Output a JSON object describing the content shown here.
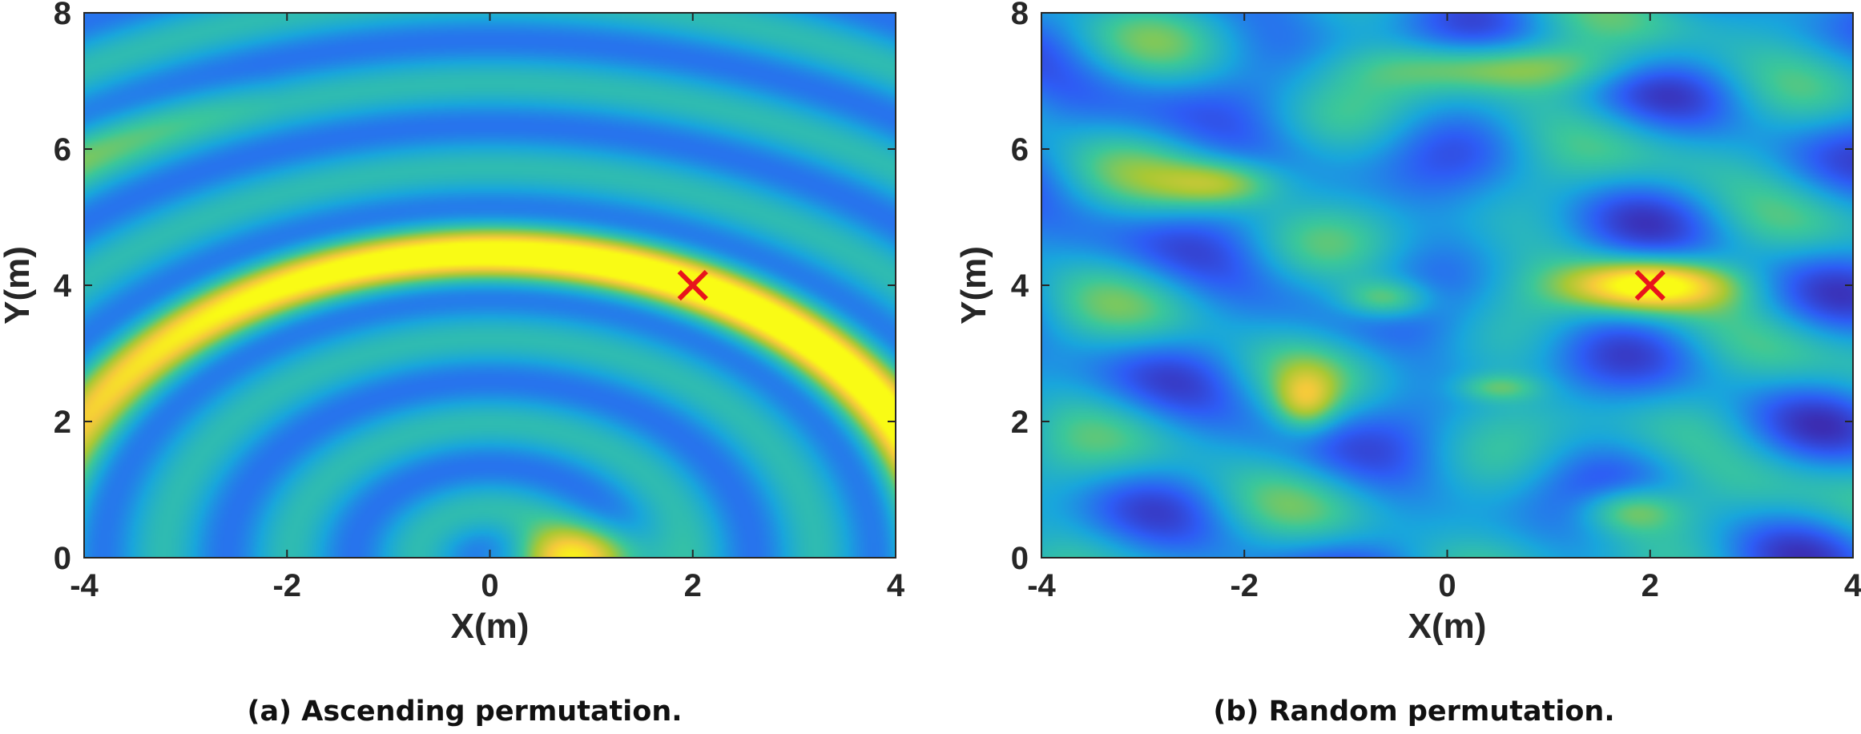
{
  "chart_data": [
    {
      "type": "heatmap",
      "title": "",
      "caption": "(a) Ascending permutation.",
      "xlabel": "X(m)",
      "ylabel": "Y(m)",
      "xlim": [
        -4,
        4
      ],
      "ylim": [
        0,
        8
      ],
      "xticks": [
        "-4",
        "-2",
        "0",
        "2",
        "4"
      ],
      "yticks": [
        "0",
        "2",
        "4",
        "6",
        "8"
      ],
      "colormap": "parula",
      "colors": [
        "#3d26a8",
        "#2e5cf5",
        "#19a6dc",
        "#3bc79a",
        "#a9c834",
        "#f5c93b",
        "#f9fb15"
      ],
      "pattern": "concentric arc rings around the origin; bright yellow ring through the target and upper-left",
      "target": {
        "x": 2,
        "y": 4,
        "marker": "x",
        "color": "#e8141c"
      }
    },
    {
      "type": "heatmap",
      "title": "",
      "caption": "(b) Random permutation.",
      "xlabel": "X(m)",
      "ylabel": "Y(m)",
      "xlim": [
        -4,
        4
      ],
      "ylim": [
        0,
        8
      ],
      "xticks": [
        "-4",
        "-2",
        "0",
        "2",
        "4"
      ],
      "yticks": [
        "0",
        "2",
        "4",
        "6",
        "8"
      ],
      "colormap": "parula",
      "colors": [
        "#3d26a8",
        "#2e5cf5",
        "#19a6dc",
        "#3bc79a",
        "#a9c834",
        "#f5c93b",
        "#f9fb15"
      ],
      "pattern": "irregular speckle with scattered blobs; brightest spot at the target",
      "target": {
        "x": 2,
        "y": 4,
        "marker": "x",
        "color": "#e8141c"
      }
    }
  ]
}
